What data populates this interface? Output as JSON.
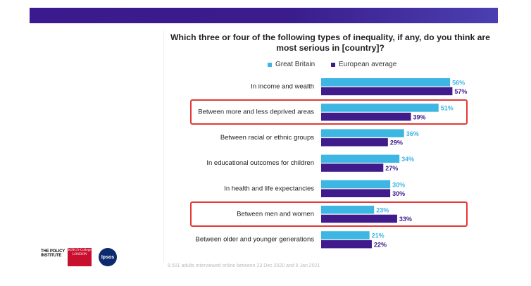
{
  "chart_data": {
    "type": "bar",
    "orientation": "horizontal",
    "title": "Which three or four of the following types of inequality, if any, do you think are most serious in [country]?",
    "categories": [
      "In income and wealth",
      "Between more and less deprived areas",
      "Between racial or ethnic groups",
      "In educational outcomes for children",
      "In health and life expectancies",
      "Between men and women",
      "Between older and younger generations"
    ],
    "series": [
      {
        "name": "Great Britain",
        "color": "#3eb6e3",
        "values": [
          56,
          51,
          36,
          34,
          30,
          23,
          21
        ]
      },
      {
        "name": "European average",
        "color": "#3f1b8c",
        "values": [
          57,
          39,
          29,
          27,
          30,
          33,
          22
        ]
      }
    ],
    "value_suffix": "%",
    "xlim": [
      0,
      100
    ],
    "highlighted_categories": [
      "Between more and less deprived areas",
      "Between men and women"
    ],
    "highlight_color": "#e53935",
    "grid": false,
    "legend_position": "top"
  },
  "footnote": "8,501 adults interviewed online between 23 Dec 2020 and 8 Jan 2021",
  "logos": {
    "policy_institute": "THE POLICY INSTITUTE",
    "kings": "KING'S College LONDON",
    "ipsos": "Ipsos"
  }
}
